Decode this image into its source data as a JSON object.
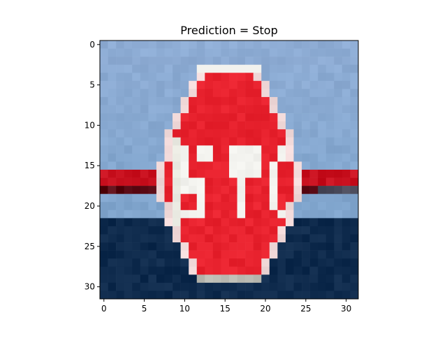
{
  "figure": {
    "title": "Prediction = Stop"
  },
  "image": {
    "grid_size": 32,
    "description_colors": {
      "sky_top": "#8eacd4",
      "sky_bottom": "#7fa4cc",
      "water": "#0e2a4c",
      "sign_red": "#e8222e",
      "sign_white": "#f2f2ee",
      "post_gray": "#b8b8b0",
      "bar_red": "#c8101e",
      "bar_dark": "#5a0a14"
    },
    "sign_letters": "STOP"
  },
  "axes": {
    "x_ticks": [
      "0",
      "5",
      "10",
      "15",
      "20",
      "25",
      "30"
    ],
    "y_ticks": [
      "0",
      "5",
      "10",
      "15",
      "20",
      "25",
      "30"
    ]
  }
}
